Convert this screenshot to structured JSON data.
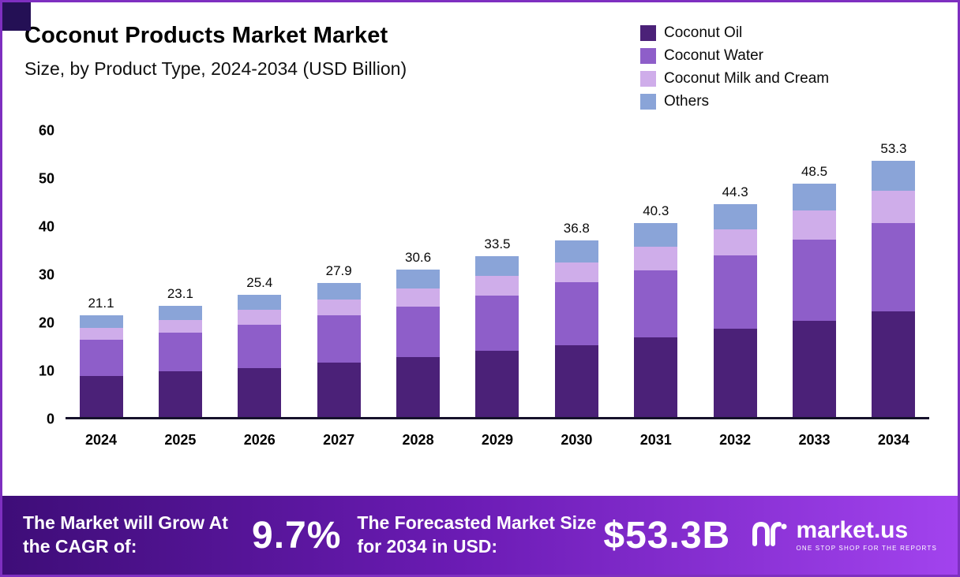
{
  "title": "Coconut Products Market Market",
  "subtitle": "Size, by Product Type, 2024-2034 (USD Billion)",
  "legend": [
    {
      "label": "Coconut Oil",
      "color": "#4b2178"
    },
    {
      "label": "Coconut Water",
      "color": "#8e5ec9"
    },
    {
      "label": "Coconut Milk and Cream",
      "color": "#cfadea"
    },
    {
      "label": "Others",
      "color": "#8aa4d8"
    }
  ],
  "chart_data": {
    "type": "bar",
    "stacked": true,
    "title": "Coconut Products Market Market Size, by Product Type, 2024-2034 (USD Billion)",
    "categories": [
      "2024",
      "2025",
      "2026",
      "2027",
      "2028",
      "2029",
      "2030",
      "2031",
      "2032",
      "2033",
      "2034"
    ],
    "totals": [
      21.1,
      23.1,
      25.4,
      27.9,
      30.6,
      33.5,
      36.8,
      40.3,
      44.3,
      48.5,
      53.3
    ],
    "series": [
      {
        "name": "Coconut Oil",
        "color": "#4b2178",
        "values": [
          8.5,
          9.5,
          10.2,
          11.3,
          12.5,
          13.7,
          15.0,
          16.6,
          18.3,
          20.0,
          21.9
        ]
      },
      {
        "name": "Coconut Water",
        "color": "#8e5ec9",
        "values": [
          7.5,
          8.0,
          9.0,
          9.8,
          10.5,
          11.6,
          13.0,
          13.9,
          15.3,
          16.9,
          18.4
        ]
      },
      {
        "name": "Coconut Milk and Cream",
        "color": "#cfadea",
        "values": [
          2.5,
          2.7,
          3.1,
          3.3,
          3.7,
          4.0,
          4.2,
          4.9,
          5.4,
          6.0,
          6.7
        ]
      },
      {
        "name": "Others",
        "color": "#8aa4d8",
        "values": [
          2.6,
          2.9,
          3.1,
          3.5,
          3.9,
          4.2,
          4.6,
          4.9,
          5.3,
          5.6,
          6.3
        ]
      }
    ],
    "xlabel": "",
    "ylabel": "",
    "ylim": [
      0,
      60
    ],
    "yticks": [
      0,
      10,
      20,
      30,
      40,
      50,
      60
    ],
    "grid": false,
    "legend_position": "top-right"
  },
  "footer": {
    "cagr_label": "The Market will Grow At the CAGR of:",
    "cagr_value": "9.7%",
    "forecast_label": "The Forecasted Market Size for 2034 in USD:",
    "forecast_value": "$53.3B",
    "brand": "market.us",
    "brand_tagline": "ONE STOP SHOP FOR THE REPORTS"
  }
}
